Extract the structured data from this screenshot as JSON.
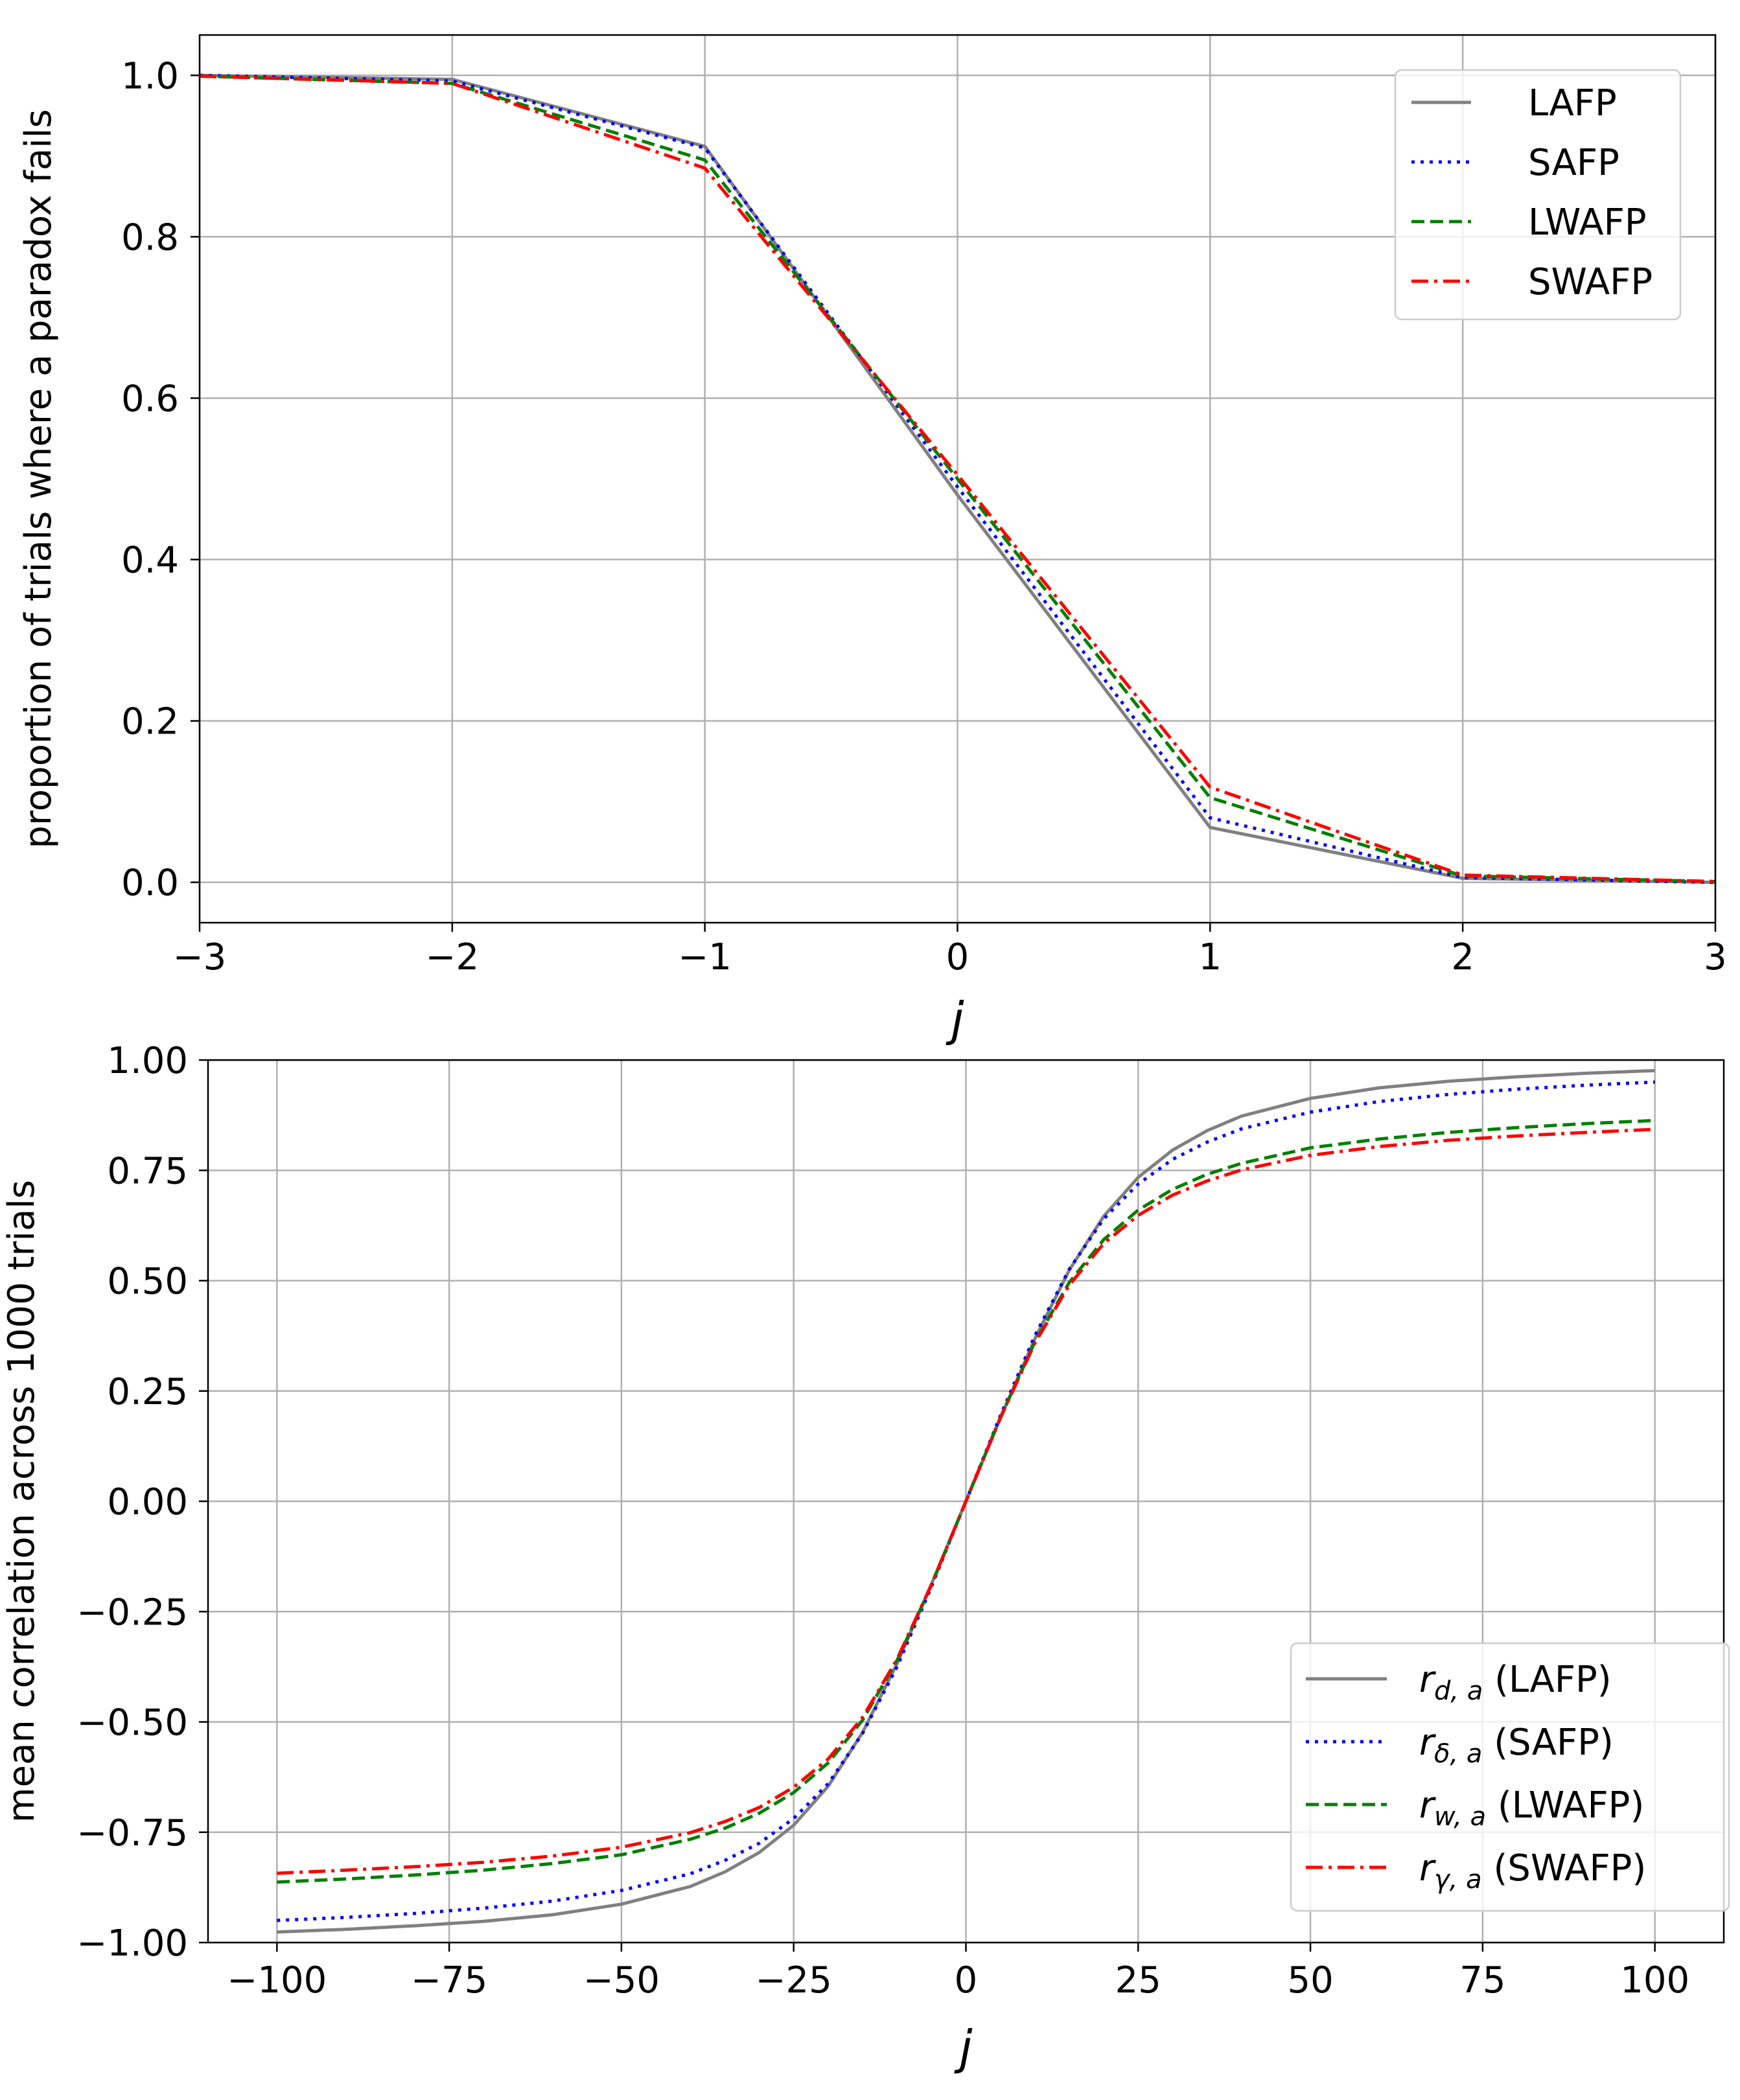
{
  "chart_data": [
    {
      "type": "line",
      "xlabel": "j",
      "ylabel": "proportion of trials where a paradox fails",
      "xlim": [
        -3,
        3
      ],
      "ylim": [
        -0.05,
        1.05
      ],
      "xticks": [
        -3,
        -2,
        -1,
        0,
        1,
        2,
        3
      ],
      "xtick_labels": [
        "−3",
        "−2",
        "−1",
        "0",
        "1",
        "2",
        "3"
      ],
      "yticks": [
        0.0,
        0.2,
        0.4,
        0.6,
        0.8,
        1.0
      ],
      "ytick_labels": [
        "0.0",
        "0.2",
        "0.4",
        "0.6",
        "0.8",
        "1.0"
      ],
      "grid": true,
      "legend_position": "top-right",
      "x": [
        -3,
        -2,
        -1,
        0,
        1,
        2,
        3
      ],
      "series": [
        {
          "name": "LAFP",
          "color": "#808080",
          "dash": "solid",
          "values": [
            1.0,
            0.995,
            0.912,
            0.48,
            0.068,
            0.005,
            0.0
          ]
        },
        {
          "name": "SAFP",
          "color": "#0000ff",
          "dash": "dotted",
          "values": [
            1.0,
            0.993,
            0.91,
            0.49,
            0.08,
            0.006,
            0.0
          ]
        },
        {
          "name": "LWAFP",
          "color": "#008000",
          "dash": "dashed",
          "values": [
            0.999,
            0.99,
            0.895,
            0.5,
            0.105,
            0.008,
            0.001
          ]
        },
        {
          "name": "SWAFP",
          "color": "#ff0000",
          "dash": "dashdot",
          "values": [
            0.999,
            0.99,
            0.885,
            0.505,
            0.118,
            0.009,
            0.001
          ]
        }
      ]
    },
    {
      "type": "line",
      "xlabel": "j",
      "ylabel": "mean correlation across 1000 trials",
      "xlim": [
        -110,
        110
      ],
      "ylim": [
        -1.0,
        1.0
      ],
      "xticks": [
        -100,
        -75,
        -50,
        -25,
        0,
        25,
        50,
        75,
        100
      ],
      "xtick_labels": [
        "−100",
        "−75",
        "−50",
        "−25",
        "0",
        "25",
        "50",
        "75",
        "100"
      ],
      "yticks": [
        -1.0,
        -0.75,
        -0.5,
        -0.25,
        0.0,
        0.25,
        0.5,
        0.75,
        1.0
      ],
      "ytick_labels": [
        "−1.00",
        "−0.75",
        "−0.50",
        "−0.25",
        "0.00",
        "0.25",
        "0.50",
        "0.75",
        "1.00"
      ],
      "grid": true,
      "legend_position": "lower-right",
      "x": [
        -100,
        -90,
        -80,
        -70,
        -60,
        -50,
        -40,
        -35,
        -30,
        -25,
        -20,
        -15,
        -10,
        -5,
        0,
        5,
        10,
        15,
        20,
        25,
        30,
        35,
        40,
        50,
        60,
        70,
        80,
        90,
        100
      ],
      "series": [
        {
          "name_main": "r",
          "name_sub": "d, a",
          "name_rest": " (LAFP)",
          "color": "#808080",
          "dash": "solid",
          "values": [
            -0.976,
            -0.97,
            -0.962,
            -0.952,
            -0.937,
            -0.913,
            -0.873,
            -0.84,
            -0.796,
            -0.734,
            -0.646,
            -0.524,
            -0.368,
            -0.188,
            0.0,
            0.188,
            0.368,
            0.524,
            0.646,
            0.734,
            0.796,
            0.84,
            0.873,
            0.913,
            0.937,
            0.952,
            0.962,
            0.97,
            0.976
          ]
        },
        {
          "name_main": "r",
          "name_sub": "δ, a",
          "name_rest": " (SAFP)",
          "color": "#0000ff",
          "dash": "dotted",
          "values": [
            -0.95,
            -0.943,
            -0.934,
            -0.922,
            -0.906,
            -0.882,
            -0.844,
            -0.814,
            -0.775,
            -0.719,
            -0.64,
            -0.526,
            -0.375,
            -0.194,
            0.0,
            0.194,
            0.375,
            0.526,
            0.64,
            0.719,
            0.775,
            0.814,
            0.844,
            0.882,
            0.906,
            0.922,
            0.934,
            0.943,
            0.95
          ]
        },
        {
          "name_main": "r",
          "name_sub": "w, a",
          "name_rest": " (LWAFP)",
          "color": "#008000",
          "dash": "dashed",
          "values": [
            -0.863,
            -0.856,
            -0.847,
            -0.836,
            -0.821,
            -0.801,
            -0.766,
            -0.741,
            -0.707,
            -0.66,
            -0.593,
            -0.496,
            -0.361,
            -0.19,
            0.0,
            0.19,
            0.361,
            0.496,
            0.593,
            0.66,
            0.707,
            0.741,
            0.766,
            0.801,
            0.821,
            0.836,
            0.847,
            0.856,
            0.863
          ]
        },
        {
          "name_main": "r",
          "name_sub": "γ, a",
          "name_rest": " (SWAFP)",
          "color": "#ff0000",
          "dash": "dashdot",
          "values": [
            -0.843,
            -0.836,
            -0.828,
            -0.818,
            -0.804,
            -0.784,
            -0.751,
            -0.726,
            -0.694,
            -0.648,
            -0.584,
            -0.49,
            -0.358,
            -0.189,
            0.0,
            0.189,
            0.358,
            0.49,
            0.584,
            0.648,
            0.694,
            0.726,
            0.751,
            0.784,
            0.804,
            0.818,
            0.828,
            0.836,
            0.843
          ]
        }
      ]
    }
  ]
}
